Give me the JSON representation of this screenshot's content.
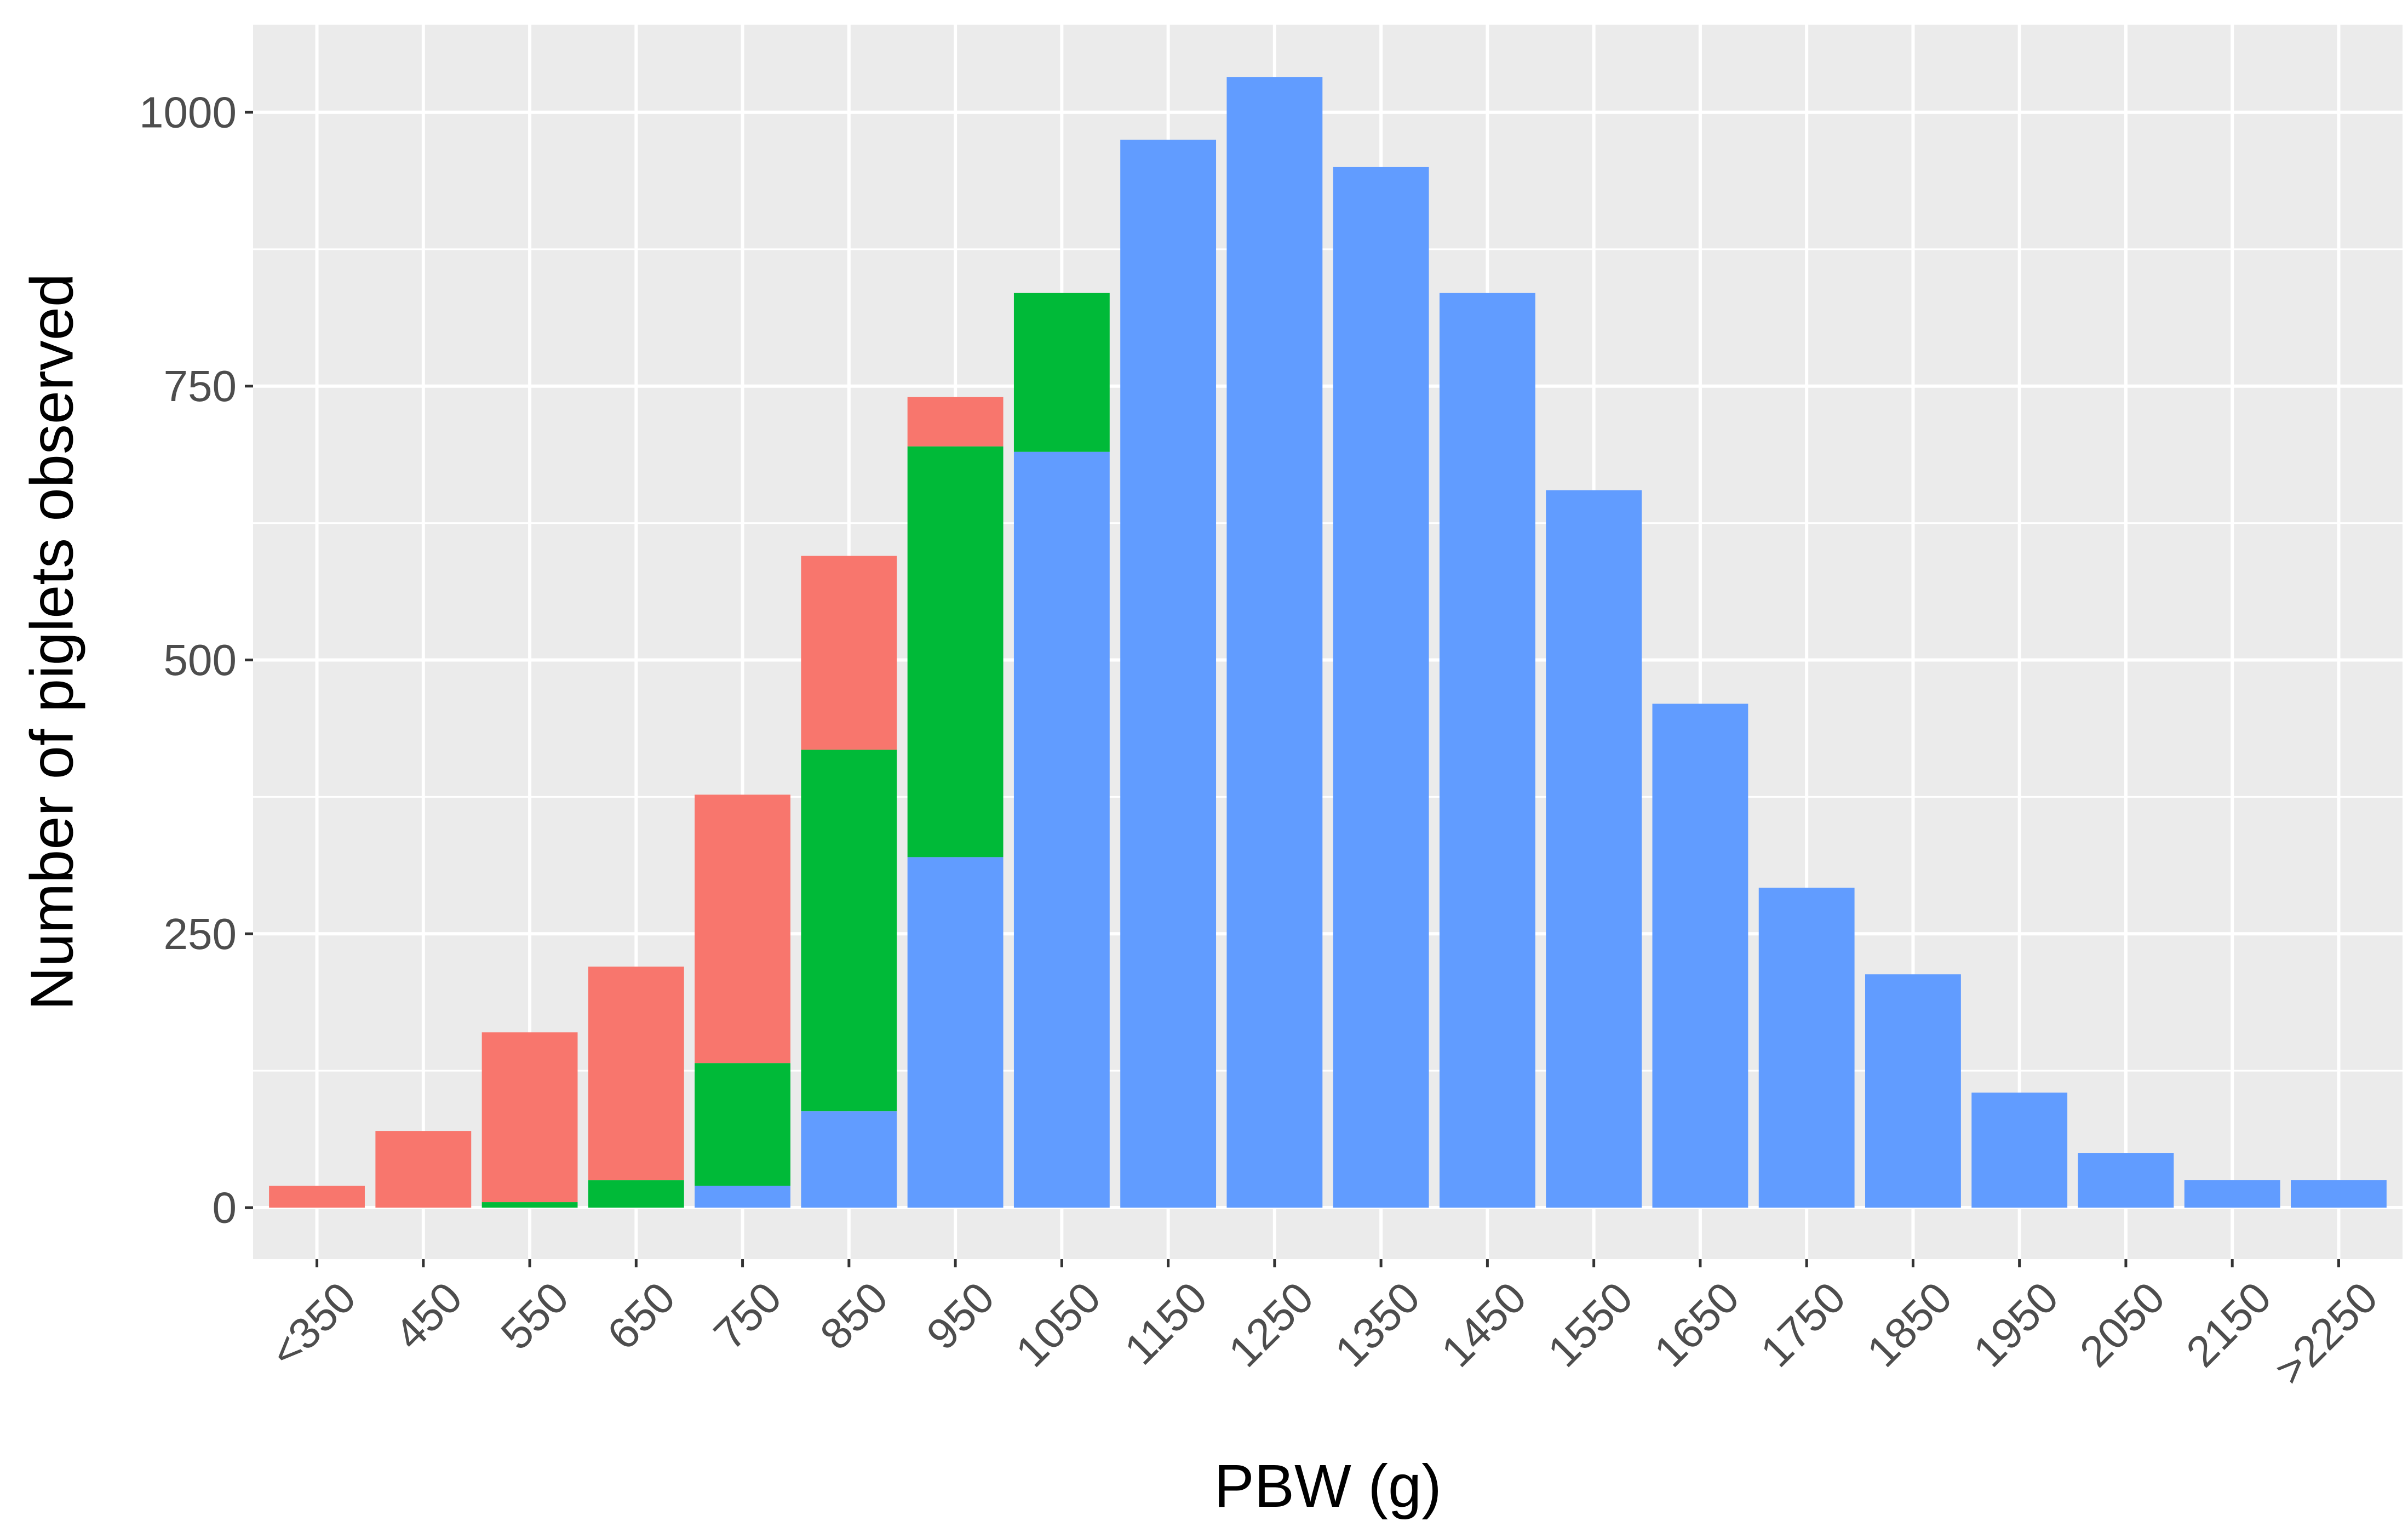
{
  "chart_data": {
    "type": "bar",
    "stacked": true,
    "xlabel": "PBW (g)",
    "ylabel": "Number of piglets observed",
    "categories": [
      "<350",
      "450",
      "550",
      "650",
      "750",
      "850",
      "950",
      "1050",
      "1150",
      "1250",
      "1350",
      "1450",
      "1550",
      "1650",
      "1750",
      "1850",
      "1950",
      "2050",
      "2150",
      ">2250"
    ],
    "series": [
      {
        "color": "#619CFF",
        "values": [
          0,
          0,
          0,
          0,
          20,
          88,
          320,
          690,
          975,
          1032,
          950,
          835,
          655,
          460,
          292,
          213,
          105,
          50,
          25,
          25
        ]
      },
      {
        "color": "#00BA38",
        "values": [
          0,
          0,
          5,
          25,
          112,
          330,
          375,
          145,
          0,
          0,
          0,
          0,
          0,
          0,
          0,
          0,
          0,
          0,
          0,
          0
        ]
      },
      {
        "color": "#F8766D",
        "values": [
          20,
          70,
          155,
          195,
          245,
          177,
          45,
          0,
          0,
          0,
          0,
          0,
          0,
          0,
          0,
          0,
          0,
          0,
          0,
          0
        ]
      }
    ],
    "ylim": [
      -47,
      1080
    ],
    "yticks": [
      0,
      250,
      500,
      750,
      1000
    ],
    "grid": true,
    "legend": "none",
    "background": "#EBEBEB",
    "gridline_color": "#FFFFFF"
  }
}
